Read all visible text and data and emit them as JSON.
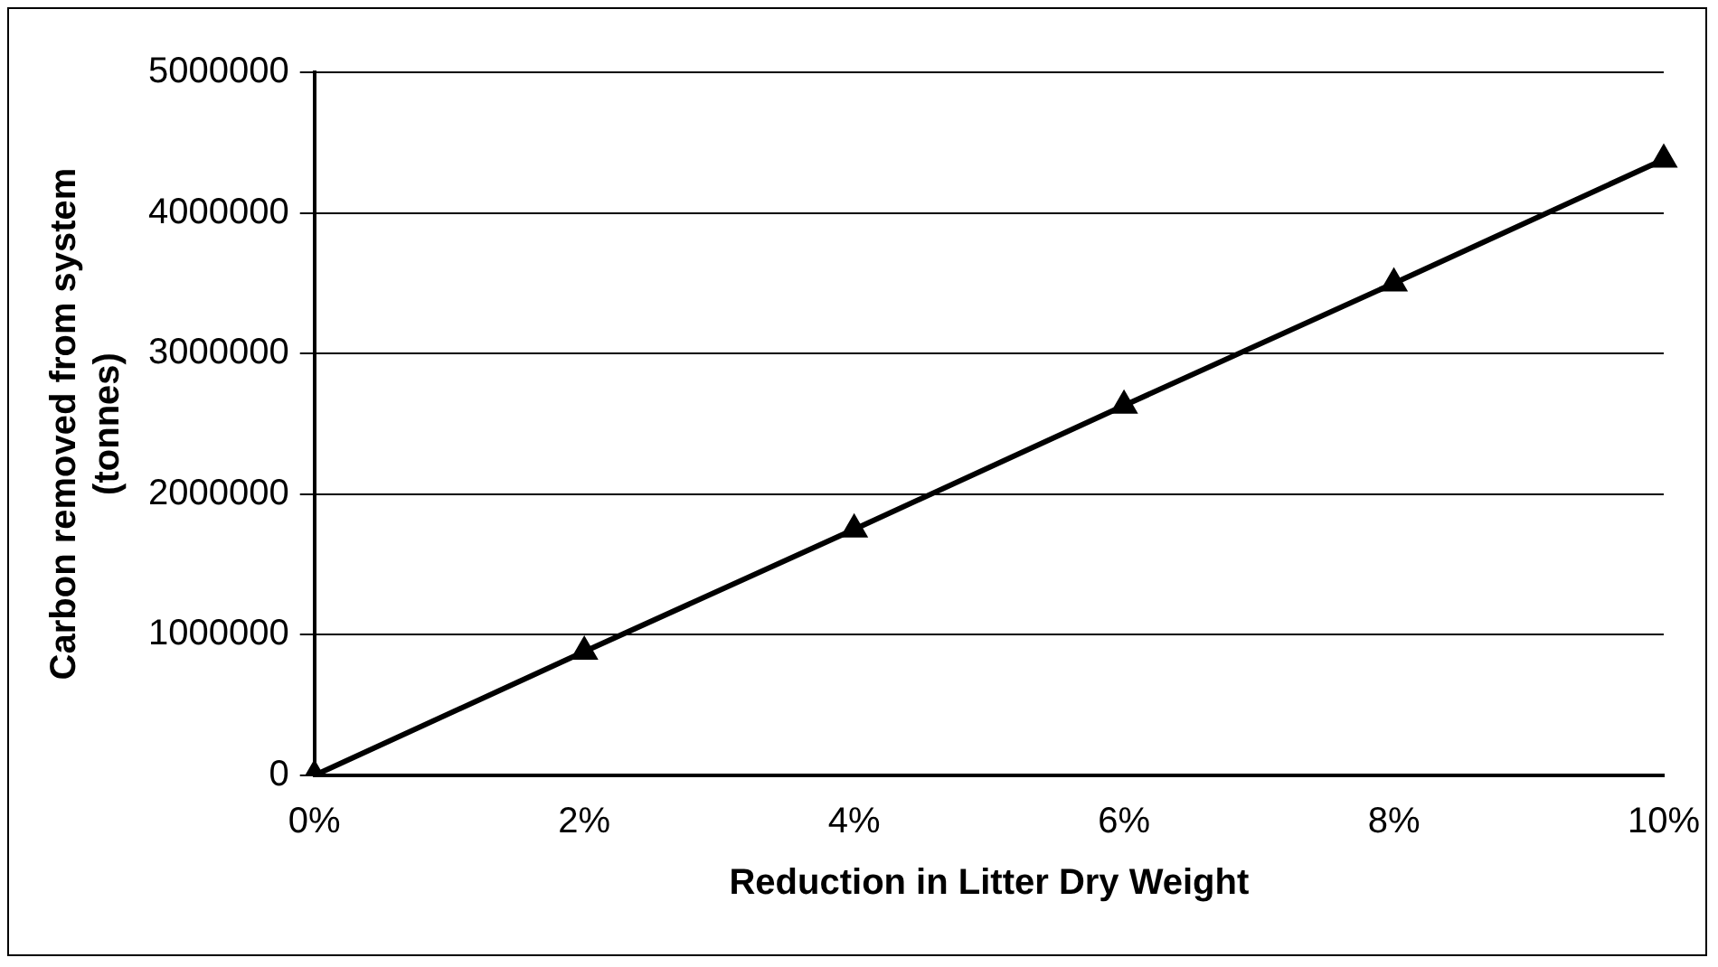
{
  "chart_data": {
    "type": "line",
    "xlabel": "Reduction in Litter Dry Weight",
    "ylabel": "Carbon removed from system\n(tonnes)",
    "categories": [
      "0%",
      "2%",
      "4%",
      "6%",
      "8%",
      "10%"
    ],
    "series": [
      {
        "color": "#000000",
        "values": [
          0,
          880000,
          1750000,
          2630000,
          3500000,
          4380000
        ]
      }
    ],
    "ylim": [
      0,
      5000000
    ],
    "yticks": [
      0,
      1000000,
      2000000,
      3000000,
      4000000,
      5000000
    ],
    "grid": "y",
    "legend": false,
    "marker": "triangle",
    "line_style": "solid"
  }
}
